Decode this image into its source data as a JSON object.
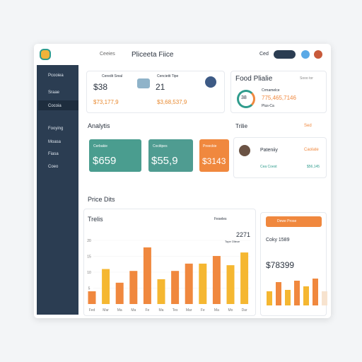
{
  "header": {
    "title": "Pliceeta Fiice",
    "search": "Ceeies",
    "user": "Ced"
  },
  "sidebar": {
    "items": [
      "Pcooiea",
      "Sraae",
      "Cocoia",
      "Fooying",
      "Moasa",
      "Fiasa",
      "Coeo"
    ]
  },
  "stats": [
    {
      "label": "Ceredit Sreal",
      "value": "$38",
      "change": "$73,177,9"
    },
    {
      "label": "Cencietti Tipe",
      "value": "21",
      "change": "$3,68,537,9"
    }
  ],
  "food_profile": {
    "title": "Food Plialie",
    "link": "Sooo tor",
    "gauge": "38",
    "metric_label": "Crmamelce",
    "metric": "775,465,7146",
    "sub": "Plus-Ca"
  },
  "analytics": {
    "title": "Analytis",
    "cards": [
      {
        "label": "Cerbakie",
        "value": "$659"
      },
      {
        "label": "Cocitipes",
        "value": "$55,9"
      },
      {
        "label": "Preeckie",
        "value": "$3143"
      }
    ]
  },
  "trade": {
    "title": "Trilie",
    "link": "Sed",
    "name": "Pateniiy",
    "role": "Caolate",
    "sub": "Cea Coest",
    "amount": "$56,145"
  },
  "section_title": "Price Dits",
  "chart_data": {
    "type": "bar",
    "title": "Trelis",
    "legend": "Feseles",
    "total": "2271",
    "total_sub": "Tope Oliece",
    "categories": [
      "Fed",
      "Mar",
      "Ma",
      "Ma",
      "Fe",
      "Ma",
      "Tes",
      "Mar",
      "Fe",
      "Ma",
      "Mo",
      "Dar"
    ],
    "values": [
      4,
      11,
      6.7,
      10.4,
      17.8,
      7.8,
      10.4,
      12.7,
      12.7,
      15.1,
      12.2,
      16.2
    ],
    "colors": [
      "#f0883e",
      "#f5b731",
      "#f0883e",
      "#f0883e",
      "#f0883e",
      "#f5b731",
      "#f0883e",
      "#f0883e",
      "#f5b731",
      "#f0883e",
      "#f5b731",
      "#f5b731"
    ],
    "ylim": [
      0,
      20
    ],
    "yticks": [
      5,
      10,
      15,
      20
    ]
  },
  "side_panel": {
    "button": "Dewe Prose",
    "label": "Coky 1589",
    "value": "$78399",
    "values": [
      20,
      33,
      22,
      35,
      27,
      38,
      20
    ],
    "colors": [
      "#f5b731",
      "#f0883e",
      "#f5b731",
      "#f0883e",
      "#f5b731",
      "#f0883e",
      "#f7e3cf"
    ]
  }
}
